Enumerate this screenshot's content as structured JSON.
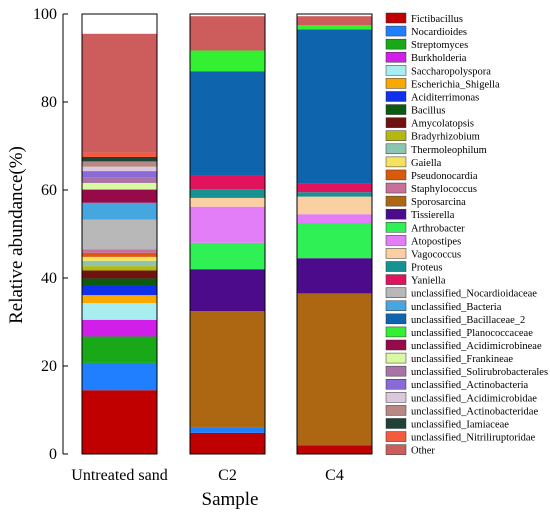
{
  "chart_data": {
    "type": "bar",
    "stacked": true,
    "xlabel": "Sample",
    "ylabel": "Relative abundance(%)",
    "ylim": [
      0,
      100
    ],
    "yticks": [
      0,
      20,
      40,
      60,
      80,
      100
    ],
    "categories": [
      "Untreated sand",
      "C2",
      "C4"
    ],
    "legend_position": "right",
    "series": [
      {
        "name": "Fictibacillus",
        "color": "#c00000",
        "values": [
          14.5,
          4.8,
          2.0
        ]
      },
      {
        "name": "Nocardioides",
        "color": "#1f7fff",
        "values": [
          6.2,
          1.2,
          0.0
        ]
      },
      {
        "name": "Streptomyces",
        "color": "#18a818",
        "values": [
          6.0,
          0.0,
          0.0
        ]
      },
      {
        "name": "Burkholderia",
        "color": "#d11ee8",
        "values": [
          3.8,
          0.0,
          0.0
        ]
      },
      {
        "name": "Saccharopolyspora",
        "color": "#a8eef0",
        "values": [
          3.8,
          0.0,
          0.0
        ]
      },
      {
        "name": "Escherichia_Shigella",
        "color": "#f9a800",
        "values": [
          1.8,
          0.0,
          0.0
        ]
      },
      {
        "name": "Aciditerrimonas",
        "color": "#1030ea",
        "values": [
          2.2,
          0.0,
          0.0
        ]
      },
      {
        "name": "Bacillus",
        "color": "#0b5a12",
        "values": [
          1.6,
          0.0,
          0.0
        ]
      },
      {
        "name": "Amycolatopsis",
        "color": "#6e1212",
        "values": [
          1.8,
          0.0,
          0.0
        ]
      },
      {
        "name": "Bradyrhizobium",
        "color": "#b5b812",
        "values": [
          1.0,
          0.0,
          0.0
        ]
      },
      {
        "name": "Thermoleophilum",
        "color": "#8dc6b0",
        "values": [
          1.2,
          0.0,
          0.0
        ]
      },
      {
        "name": "Gaiella",
        "color": "#f6e25e",
        "values": [
          0.9,
          0.0,
          0.0
        ]
      },
      {
        "name": "Pseudonocardia",
        "color": "#d95a0c",
        "values": [
          0.9,
          0.0,
          0.0
        ]
      },
      {
        "name": "Staphylococcus",
        "color": "#c9709a",
        "values": [
          0.8,
          0.0,
          0.0
        ]
      },
      {
        "name": "Sporosarcina",
        "color": "#ad6712",
        "values": [
          0.0,
          26.5,
          34.5
        ]
      },
      {
        "name": "Tissierella",
        "color": "#4c0b8a",
        "values": [
          0.0,
          9.5,
          8.0
        ]
      },
      {
        "name": "Arthrobacter",
        "color": "#2ff055",
        "values": [
          0.0,
          6.0,
          8.0
        ]
      },
      {
        "name": "Atopostipes",
        "color": "#e37ef8",
        "values": [
          0.0,
          8.2,
          2.0
        ]
      },
      {
        "name": "Vagococcus",
        "color": "#fad0a2",
        "values": [
          0.0,
          2.0,
          4.0
        ]
      },
      {
        "name": "Proteus",
        "color": "#179292",
        "values": [
          0.0,
          2.0,
          1.0
        ]
      },
      {
        "name": "Yaniella",
        "color": "#e0135c",
        "values": [
          0.0,
          3.0,
          2.0
        ]
      },
      {
        "name": "unclassified_Nocardioidaceae",
        "color": "#b8b8b8",
        "values": [
          6.8,
          0.0,
          0.0
        ]
      },
      {
        "name": "unclassified_Bacteria",
        "color": "#46a6e0",
        "values": [
          3.8,
          0.0,
          0.0
        ]
      },
      {
        "name": "unclassified_Bacillaceae_2",
        "color": "#0f64ae",
        "values": [
          0.0,
          23.8,
          35.0
        ]
      },
      {
        "name": "unclassified_Planococcaceae",
        "color": "#33f033",
        "values": [
          0.0,
          4.7,
          1.0
        ]
      },
      {
        "name": "unclassified_Acidimicrobineae",
        "color": "#970a4a",
        "values": [
          3.0,
          0.0,
          0.0
        ]
      },
      {
        "name": "unclassified_Frankineae",
        "color": "#d8f8a2",
        "values": [
          1.5,
          0.0,
          0.0
        ]
      },
      {
        "name": "unclassified_Solirubrobacterales",
        "color": "#a874a6",
        "values": [
          1.2,
          0.0,
          0.0
        ]
      },
      {
        "name": "unclassified_Actinobacteria",
        "color": "#8a6ad8",
        "values": [
          1.5,
          0.0,
          0.0
        ]
      },
      {
        "name": "unclassified_Acidimicrobidae",
        "color": "#dcc8dc",
        "values": [
          1.0,
          0.0,
          0.0
        ]
      },
      {
        "name": "unclassified_Actinobacteridae",
        "color": "#b88984",
        "values": [
          1.2,
          0.0,
          0.0
        ]
      },
      {
        "name": "unclassified_Iamiaceae",
        "color": "#1f4236",
        "values": [
          1.0,
          0.0,
          0.0
        ]
      },
      {
        "name": "unclassified_Nitriliruptoridae",
        "color": "#f45a3e",
        "values": [
          1.0,
          0.0,
          0.0
        ]
      },
      {
        "name": "Other",
        "color": "#cd5c5c",
        "values": [
          27.0,
          7.8,
          2.0
        ]
      }
    ]
  }
}
